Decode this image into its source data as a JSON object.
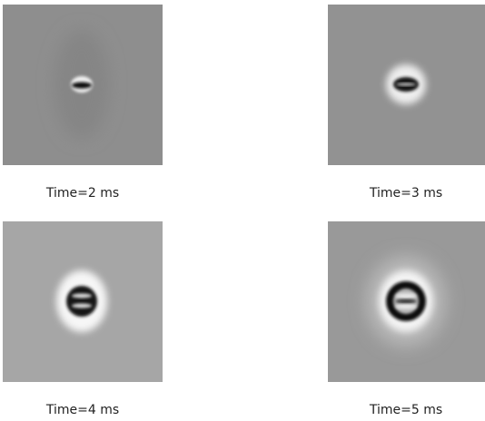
{
  "panels": [
    {
      "caption": "Time=2 ms"
    },
    {
      "caption": "Time=3 ms"
    },
    {
      "caption": "Time=4 ms"
    },
    {
      "caption": "Time=5 ms"
    }
  ]
}
